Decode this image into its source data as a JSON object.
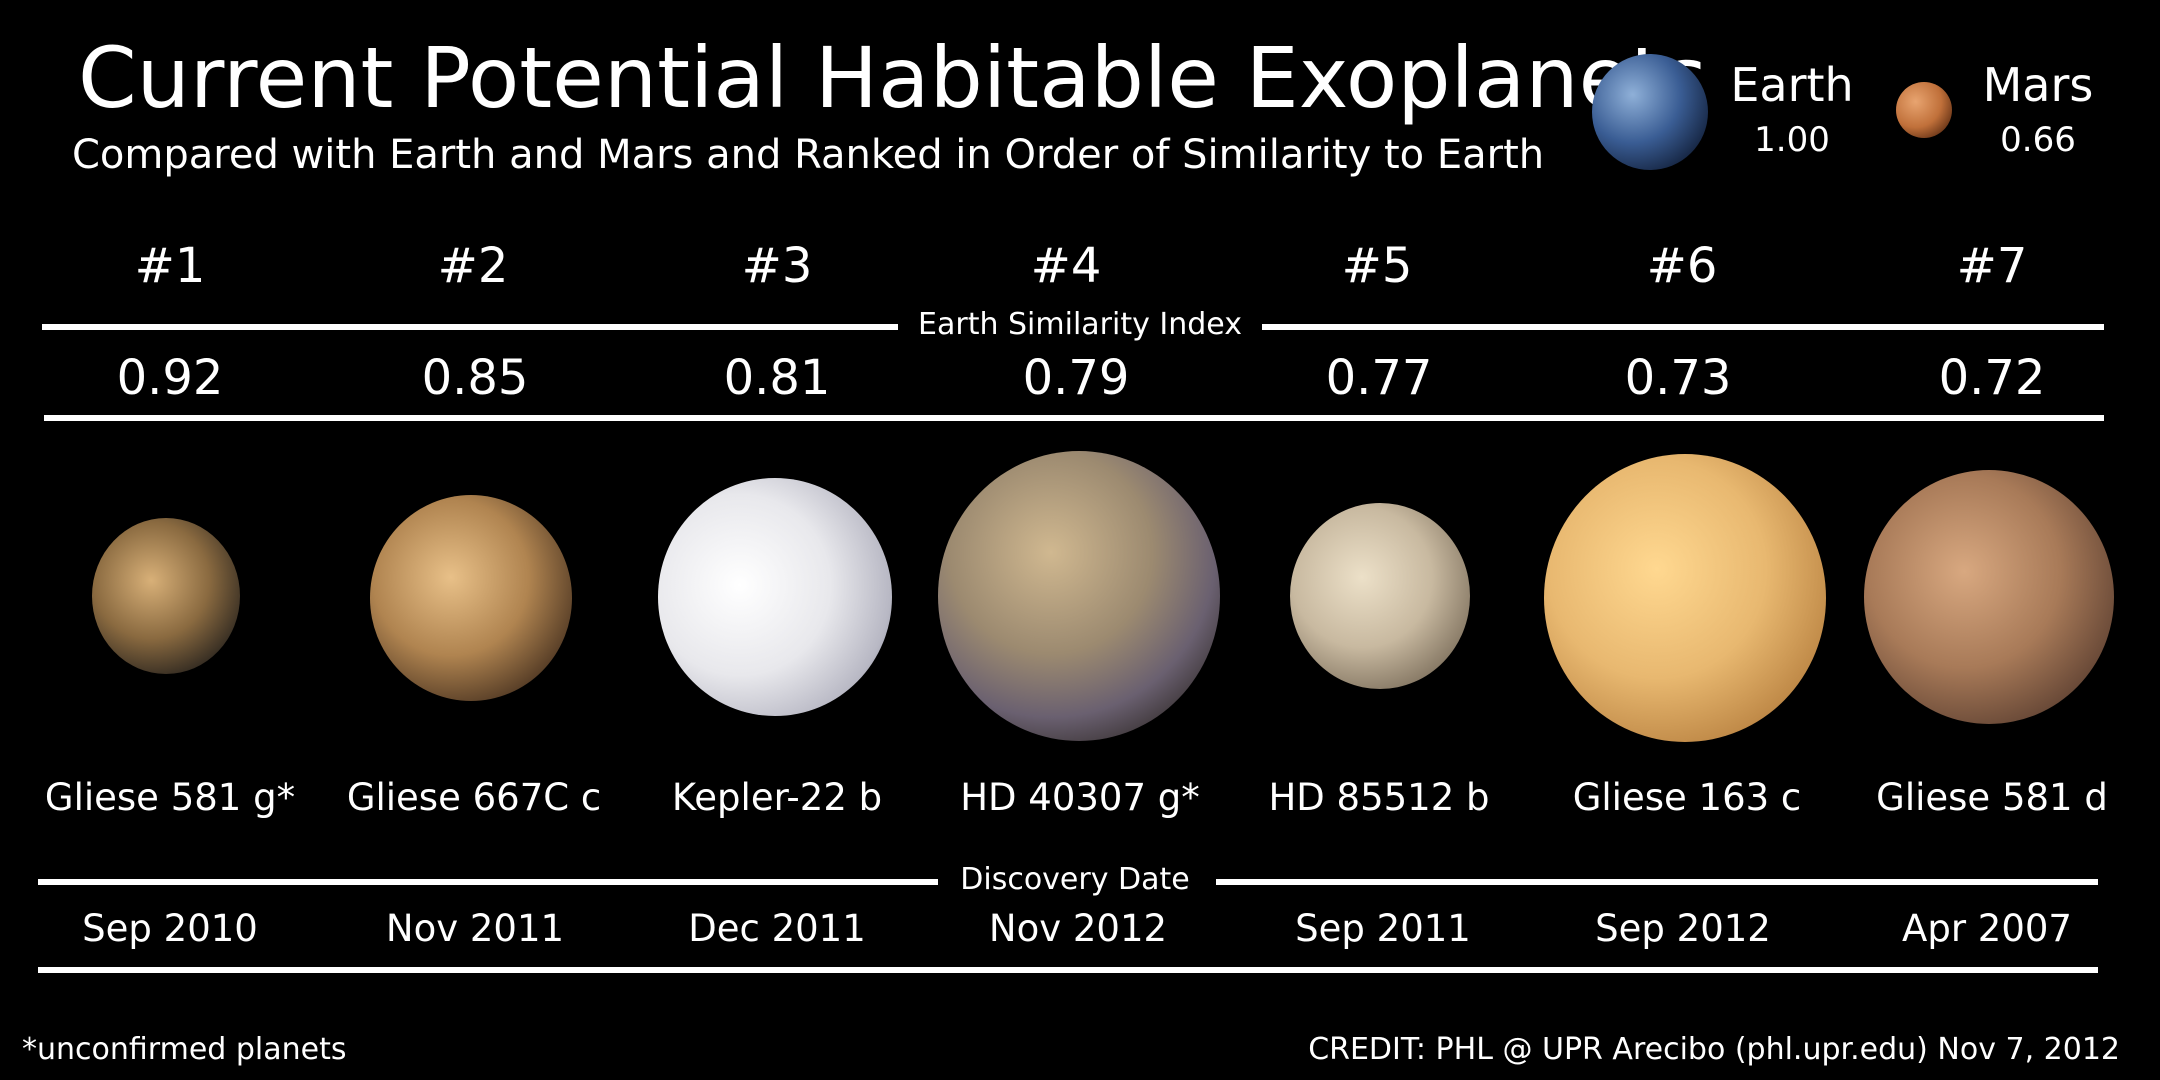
{
  "header": {
    "title": "Current Potential Habitable Exoplanets",
    "subtitle": "Compared with Earth and Mars and Ranked in Order of Similarity to Earth"
  },
  "reference": [
    {
      "name": "Earth",
      "esi": "1.00",
      "color": "#3a5d94"
    },
    {
      "name": "Mars",
      "esi": "0.66",
      "color": "#c0703a"
    }
  ],
  "labels": {
    "esi_label": "Earth Similarity Index",
    "date_label": "Discovery Date"
  },
  "planets": [
    {
      "rank": "#1",
      "esi": "0.92",
      "name": "Gliese 581 g*",
      "date": "Sep 2010",
      "color": "#b08a55"
    },
    {
      "rank": "#2",
      "esi": "0.85",
      "name": "Gliese 667C c",
      "date": "Nov 2011",
      "color": "#c09460"
    },
    {
      "rank": "#3",
      "esi": "0.81",
      "name": "Kepler-22 b",
      "date": "Dec 2011",
      "color": "#e8e8ec"
    },
    {
      "rank": "#4",
      "esi": "0.79",
      "name": "HD 40307 g*",
      "date": "Nov 2012",
      "color": "#9c8a70"
    },
    {
      "rank": "#5",
      "esi": "0.77",
      "name": "HD 85512 b",
      "date": "Sep 2011",
      "color": "#c8b9a0"
    },
    {
      "rank": "#6",
      "esi": "0.73",
      "name": "Gliese 163 c",
      "date": "Sep 2012",
      "color": "#e8b870"
    },
    {
      "rank": "#7",
      "esi": "0.72",
      "name": "Gliese 581 d",
      "date": "Apr 2007",
      "color": "#a87a58"
    }
  ],
  "footer": {
    "note": "*unconfirmed planets",
    "credit": "CREDIT: PHL @ UPR Arecibo (phl.upr.edu) Nov 7, 2012"
  }
}
